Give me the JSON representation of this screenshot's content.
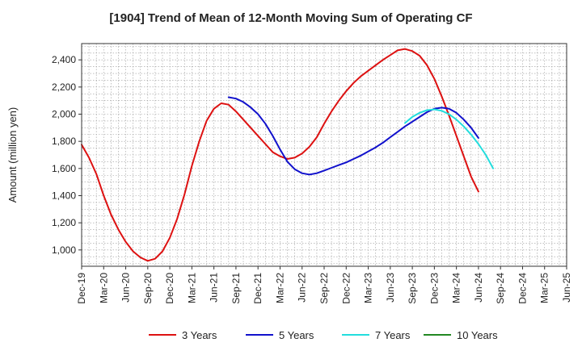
{
  "chart_data": {
    "type": "line",
    "title": "[1904]  Trend of Mean of 12-Month Moving Sum of Operating CF",
    "xlabel": "",
    "ylabel": "Amount (million yen)",
    "ylim": [
      880,
      2520
    ],
    "yticks": [
      1000,
      1200,
      1400,
      1600,
      1800,
      2000,
      2200,
      2400
    ],
    "ytick_labels": [
      "1,000",
      "1,200",
      "1,400",
      "1,600",
      "1,800",
      "2,000",
      "2,200",
      "2,400"
    ],
    "x_range_months": [
      0,
      66
    ],
    "xticks": [
      {
        "label": "Dec-19",
        "m": 0
      },
      {
        "label": "Mar-20",
        "m": 3
      },
      {
        "label": "Jun-20",
        "m": 6
      },
      {
        "label": "Sep-20",
        "m": 9
      },
      {
        "label": "Dec-20",
        "m": 12
      },
      {
        "label": "Mar-21",
        "m": 15
      },
      {
        "label": "Jun-21",
        "m": 18
      },
      {
        "label": "Sep-21",
        "m": 21
      },
      {
        "label": "Dec-21",
        "m": 24
      },
      {
        "label": "Mar-22",
        "m": 27
      },
      {
        "label": "Jun-22",
        "m": 30
      },
      {
        "label": "Sep-22",
        "m": 33
      },
      {
        "label": "Dec-22",
        "m": 36
      },
      {
        "label": "Mar-23",
        "m": 39
      },
      {
        "label": "Jun-23",
        "m": 42
      },
      {
        "label": "Sep-23",
        "m": 45
      },
      {
        "label": "Dec-23",
        "m": 48
      },
      {
        "label": "Mar-24",
        "m": 51
      },
      {
        "label": "Jun-24",
        "m": 54
      },
      {
        "label": "Sep-24",
        "m": 57
      },
      {
        "label": "Dec-24",
        "m": 60
      },
      {
        "label": "Mar-25",
        "m": 63
      },
      {
        "label": "Jun-25",
        "m": 66
      }
    ],
    "grid": true,
    "legend_position": "bottom",
    "series": [
      {
        "name": "3 Years",
        "color": "#dd1111",
        "start_m": 0,
        "values": [
          1775,
          1680,
          1560,
          1400,
          1260,
          1150,
          1060,
          990,
          945,
          920,
          935,
          990,
          1090,
          1230,
          1410,
          1620,
          1800,
          1950,
          2040,
          2080,
          2070,
          2020,
          1960,
          1900,
          1840,
          1780,
          1720,
          1690,
          1670,
          1680,
          1710,
          1760,
          1830,
          1930,
          2020,
          2100,
          2170,
          2230,
          2280,
          2320,
          2360,
          2400,
          2435,
          2470,
          2480,
          2465,
          2430,
          2360,
          2260,
          2130,
          1990,
          1840,
          1690,
          1540,
          1430
        ]
      },
      {
        "name": "5 Years",
        "color": "#1111cc",
        "start_m": 20,
        "values": [
          2125,
          2115,
          2090,
          2050,
          2000,
          1930,
          1840,
          1740,
          1650,
          1595,
          1565,
          1555,
          1565,
          1585,
          1605,
          1625,
          1645,
          1670,
          1695,
          1725,
          1755,
          1790,
          1830,
          1870,
          1910,
          1945,
          1980,
          2015,
          2040,
          2048,
          2040,
          2010,
          1960,
          1900,
          1825
        ]
      },
      {
        "name": "7 Years",
        "color": "#22dddd",
        "start_m": 44,
        "values": [
          1935,
          1980,
          2010,
          2030,
          2035,
          2025,
          2000,
          1960,
          1910,
          1850,
          1780,
          1700,
          1600
        ]
      },
      {
        "name": "10 Years",
        "color": "#228822",
        "start_m": 0,
        "values": []
      }
    ]
  }
}
